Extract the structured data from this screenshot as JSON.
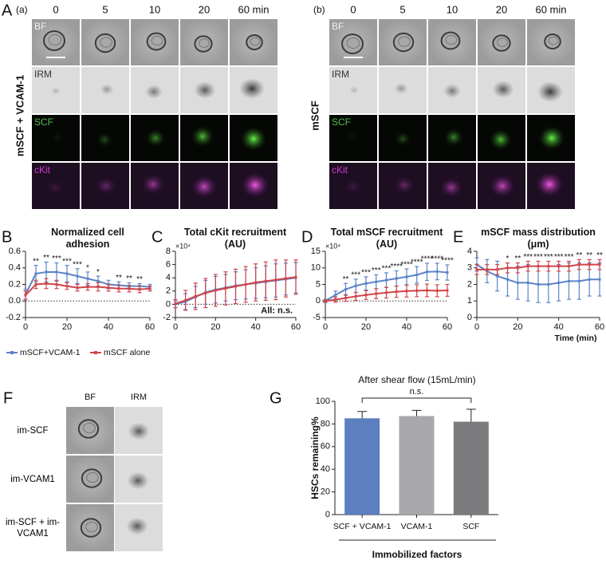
{
  "panel_a": {
    "letter": "A",
    "sublabel": "(a)",
    "condition": "mSCF + VCAM-1",
    "times": [
      "0",
      "5",
      "10",
      "20",
      "60 min"
    ],
    "channels": [
      "BF",
      "IRM",
      "SCF",
      "cKit"
    ]
  },
  "panel_b": {
    "sublabel": "(b)",
    "condition": "mSCF",
    "times": [
      "0",
      "5",
      "10",
      "20",
      "60 min"
    ],
    "channels": [
      "BF",
      "IRM",
      "SCF",
      "cKit"
    ]
  },
  "panel_f": {
    "letter": "F",
    "columns": [
      "BF",
      "IRM"
    ],
    "rows": [
      "im-SCF",
      "im-VCAM1",
      "im-SCF + im-VCAM1"
    ]
  },
  "chart_data": [
    {
      "type": "line",
      "letter": "B",
      "title": "Normalized cell adhesion",
      "x": [
        0,
        5,
        10,
        15,
        20,
        25,
        30,
        35,
        40,
        45,
        50,
        55,
        60
      ],
      "series": [
        {
          "name": "mSCF+VCAM-1",
          "color": "#5b84c8",
          "values": [
            0.08,
            0.33,
            0.35,
            0.35,
            0.33,
            0.3,
            0.27,
            0.24,
            0.2,
            0.19,
            0.18,
            0.18,
            0.17
          ],
          "errors": [
            0.06,
            0.1,
            0.12,
            0.11,
            0.1,
            0.09,
            0.08,
            0.06,
            0.05,
            0.04,
            0.04,
            0.03,
            0.03
          ]
        },
        {
          "name": "mSCF alone",
          "color": "#d0454a",
          "values": [
            0.07,
            0.2,
            0.21,
            0.2,
            0.18,
            0.16,
            0.17,
            0.17,
            0.16,
            0.15,
            0.15,
            0.14,
            0.15
          ],
          "errors": [
            0.05,
            0.05,
            0.06,
            0.05,
            0.04,
            0.04,
            0.04,
            0.05,
            0.04,
            0.04,
            0.04,
            0.04,
            0.03
          ]
        }
      ],
      "xlim": [
        0,
        60
      ],
      "xticks": [
        0,
        20,
        40,
        60
      ],
      "ylim": [
        -0.2,
        0.6
      ],
      "yticks": [
        -0.2,
        {
          "value": 0,
          "label": "0.0"
        },
        0.2,
        0.4,
        0.6
      ],
      "hline": 0,
      "annotations": [
        {
          "x": 5,
          "text": "**"
        },
        {
          "x": 10,
          "text": "**"
        },
        {
          "x": 15,
          "text": "***"
        },
        {
          "x": 20,
          "text": "***"
        },
        {
          "x": 25,
          "text": "***"
        },
        {
          "x": 30,
          "text": "*"
        },
        {
          "x": 35,
          "text": "*"
        },
        {
          "x": 45,
          "text": "**"
        },
        {
          "x": 50,
          "text": "**"
        },
        {
          "x": 55,
          "text": "**"
        }
      ]
    },
    {
      "type": "line",
      "letter": "C",
      "title": "Total cKit recruitment (AU)",
      "axis_multiplier": "×10⁴",
      "x": [
        0,
        5,
        10,
        15,
        20,
        25,
        30,
        35,
        40,
        45,
        50,
        55,
        60
      ],
      "series": [
        {
          "color": "#5b84c8",
          "values": [
            0,
            0.4,
            1.1,
            1.8,
            2.2,
            2.5,
            2.8,
            3.0,
            3.2,
            3.4,
            3.6,
            3.8,
            4.0
          ],
          "errors": [
            0.5,
            1.2,
            1.6,
            1.8,
            2,
            2,
            2.1,
            2.2,
            2.3,
            2.4,
            2.5,
            2.4,
            2.3
          ]
        },
        {
          "color": "#d0454a",
          "values": [
            0.1,
            0.6,
            1.2,
            1.7,
            2.1,
            2.4,
            2.7,
            3.0,
            3.3,
            3.5,
            3.7,
            3.9,
            4.1
          ],
          "errors": [
            0.6,
            1.5,
            2,
            2.2,
            2.4,
            2.5,
            2.6,
            2.7,
            2.8,
            2.9,
            3,
            2.8,
            2.6
          ]
        }
      ],
      "xlim": [
        0,
        60
      ],
      "xticks": [
        0,
        20,
        40,
        60
      ],
      "ylim": [
        -2,
        8
      ],
      "yticks": [
        -2,
        0,
        2,
        4,
        6,
        8
      ],
      "hline": 0,
      "note": "All: n.s."
    },
    {
      "type": "line",
      "letter": "D",
      "title": "Total mSCF recruitment (AU)",
      "axis_multiplier": "×10⁴",
      "x": [
        0,
        5,
        10,
        15,
        20,
        25,
        30,
        35,
        40,
        45,
        50,
        55,
        60
      ],
      "series": [
        {
          "color": "#5b84c8",
          "values": [
            0,
            1.8,
            3.5,
            4.6,
            5.3,
            5.8,
            6.3,
            6.8,
            7.3,
            7.9,
            8.8,
            8.9,
            8.6
          ],
          "errors": [
            0.5,
            1.2,
            1.8,
            2,
            2,
            2.1,
            2.2,
            2.3,
            2.4,
            2.5,
            2.6,
            2.5,
            2.3
          ]
        },
        {
          "color": "#d0454a",
          "values": [
            0,
            0.4,
            0.9,
            1.4,
            1.8,
            2.2,
            2.5,
            2.8,
            3.0,
            3.1,
            3.2,
            3.1,
            3.2
          ],
          "errors": [
            0.3,
            0.8,
            1,
            1.2,
            1.3,
            1.5,
            1.6,
            1.7,
            1.8,
            1.8,
            1.9,
            1.8,
            1.8
          ]
        }
      ],
      "xlim": [
        0,
        60
      ],
      "xticks": [
        0,
        20,
        40,
        60
      ],
      "ylim": [
        -5,
        15
      ],
      "yticks": [
        -5,
        0,
        5,
        10,
        15
      ],
      "hline": 0,
      "annotations": [
        {
          "x": 10,
          "text": "**"
        },
        {
          "x": 15,
          "text": "***"
        },
        {
          "x": 20,
          "text": "***"
        },
        {
          "x": 25,
          "text": "***"
        },
        {
          "x": 30,
          "text": "***"
        },
        {
          "x": 35,
          "text": "****"
        },
        {
          "x": 40,
          "text": "****"
        },
        {
          "x": 45,
          "text": "****"
        },
        {
          "x": 50,
          "text": "****"
        },
        {
          "x": 55,
          "text": "****"
        },
        {
          "x": 60,
          "text": "****"
        }
      ]
    },
    {
      "type": "line",
      "letter": "E",
      "title": "mSCF mass distribution (μm)",
      "xlabel": "Time (min)",
      "x": [
        0,
        5,
        10,
        15,
        20,
        25,
        30,
        35,
        40,
        45,
        50,
        55,
        60
      ],
      "series": [
        {
          "color": "#5b84c8",
          "values": [
            3.2,
            2.8,
            2.5,
            2.3,
            2.1,
            2.1,
            2.0,
            2.0,
            2.1,
            2.2,
            2.2,
            2.3,
            2.3
          ],
          "errors": [
            0.4,
            0.7,
            0.9,
            1,
            1,
            1.1,
            1.1,
            1.1,
            1.1,
            1.1,
            1.1,
            1.0,
            1.0
          ]
        },
        {
          "color": "#d0454a",
          "values": [
            2.9,
            2.9,
            2.9,
            3.0,
            3.0,
            3.1,
            3.1,
            3.1,
            3.1,
            3.1,
            3.2,
            3.2,
            3.2
          ],
          "errors": [
            0.3,
            0.3,
            0.3,
            0.3,
            0.3,
            0.3,
            0.3,
            0.3,
            0.3,
            0.3,
            0.3,
            0.3,
            0.3
          ]
        }
      ],
      "xlim": [
        0,
        60
      ],
      "xticks": [
        0,
        20,
        40,
        60
      ],
      "ylim": [
        0,
        4
      ],
      "yticks": [
        0,
        1,
        2,
        3,
        4
      ],
      "annotations": [
        {
          "x": 15,
          "text": "*"
        },
        {
          "x": 20,
          "text": "**"
        },
        {
          "x": 25,
          "text": "***"
        },
        {
          "x": 30,
          "text": "***"
        },
        {
          "x": 35,
          "text": "***"
        },
        {
          "x": 40,
          "text": "***"
        },
        {
          "x": 45,
          "text": "***"
        },
        {
          "x": 50,
          "text": "**"
        },
        {
          "x": 55,
          "text": "**"
        },
        {
          "x": 60,
          "text": "**"
        }
      ]
    },
    {
      "type": "bar",
      "letter": "G",
      "title": "After shear flow (15mL/min)",
      "ylabel": "HSCs remaining%",
      "xlabel": "Immobilized factors",
      "categories": [
        "SCF + VCAM-1",
        "VCAM-1",
        "SCF"
      ],
      "values": [
        85,
        87,
        82
      ],
      "errors": [
        6,
        5,
        11
      ],
      "colors": [
        "#5b7fbf",
        "#a8a8ad",
        "#7b7b7d"
      ],
      "ylim": [
        0,
        100
      ],
      "yticks": [
        0,
        20,
        40,
        60,
        80,
        100
      ],
      "bracket_label": "n.s."
    }
  ]
}
